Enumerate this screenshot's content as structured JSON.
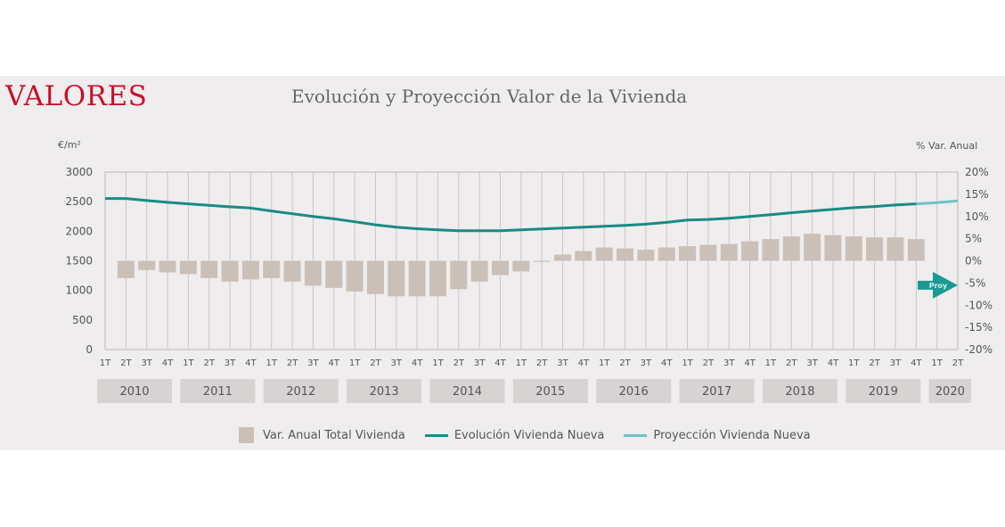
{
  "brand": "VALORES",
  "chart_data": {
    "type": "bar+line",
    "title": "Evolución y Proyección Valor de la Vivienda",
    "ylabel_left": "€/m²",
    "ylabel_right": "% Var. Anual",
    "ylim_left": [
      0,
      3000
    ],
    "ylim_right": [
      -20,
      20
    ],
    "yticks_left": [
      "0",
      "500",
      "1000",
      "1500",
      "2000",
      "2500",
      "3000"
    ],
    "yticks_right": [
      "-20%",
      "-15%",
      "-10%",
      "-5%",
      "0%",
      "5%",
      "10%",
      "15%",
      "20%"
    ],
    "grid": "vertical",
    "legend_position": "bottom",
    "quarter_labels": [
      "1T",
      "2T",
      "3T",
      "4T",
      "1T",
      "2T",
      "3T",
      "4T",
      "1T",
      "2T",
      "3T",
      "4T",
      "1T",
      "2T",
      "3T",
      "4T",
      "1T",
      "2T",
      "3T",
      "4T",
      "1T",
      "2T",
      "3T",
      "4T",
      "1T",
      "2T",
      "3T",
      "4T",
      "1T",
      "2T",
      "3T",
      "4T",
      "1T",
      "2T",
      "3T",
      "4T",
      "1T",
      "2T",
      "3T",
      "4T",
      "1T",
      "2T"
    ],
    "years": [
      "2010",
      "2011",
      "2012",
      "2013",
      "2014",
      "2015",
      "2016",
      "2017",
      "2018",
      "2019",
      "2020"
    ],
    "annotation": "Proy",
    "series": [
      {
        "name": "Var. Anual Total Vivienda",
        "type": "bar",
        "axis": "right",
        "color": "#cbc0b8",
        "values": [
          null,
          -3.9,
          -2.1,
          -2.6,
          -3.0,
          -3.9,
          -4.7,
          -4.2,
          -3.9,
          -4.7,
          -5.6,
          -6.1,
          -6.9,
          -7.5,
          -8.0,
          -8.0,
          -8.0,
          -6.4,
          -4.7,
          -3.2,
          -2.4,
          -0.2,
          1.4,
          2.2,
          3.0,
          2.8,
          2.5,
          3.0,
          3.3,
          3.6,
          3.8,
          4.4,
          4.9,
          5.5,
          6.1,
          5.8,
          5.5,
          5.3,
          5.3,
          4.9,
          null,
          null
        ]
      },
      {
        "name": "Evolución Vivienda Nueva",
        "type": "line",
        "axis": "left",
        "color": "#1a8a84",
        "values": [
          2554,
          2554,
          2519,
          2489,
          2463,
          2438,
          2413,
          2393,
          2342,
          2296,
          2251,
          2210,
          2160,
          2109,
          2069,
          2043,
          2023,
          2008,
          2008,
          2008,
          2023,
          2038,
          2054,
          2069,
          2084,
          2099,
          2120,
          2150,
          2190,
          2200,
          2220,
          2251,
          2281,
          2312,
          2342,
          2372,
          2398,
          2418,
          2443,
          2463,
          null,
          null
        ]
      },
      {
        "name": "Proyección Vivienda Nueva",
        "type": "line",
        "axis": "left",
        "color": "#6cc3c6",
        "values": [
          null,
          null,
          null,
          null,
          null,
          null,
          null,
          null,
          null,
          null,
          null,
          null,
          null,
          null,
          null,
          null,
          null,
          null,
          null,
          null,
          null,
          null,
          null,
          null,
          null,
          null,
          null,
          null,
          null,
          null,
          null,
          null,
          null,
          null,
          null,
          null,
          null,
          null,
          null,
          2463,
          2484,
          2514
        ]
      }
    ]
  }
}
